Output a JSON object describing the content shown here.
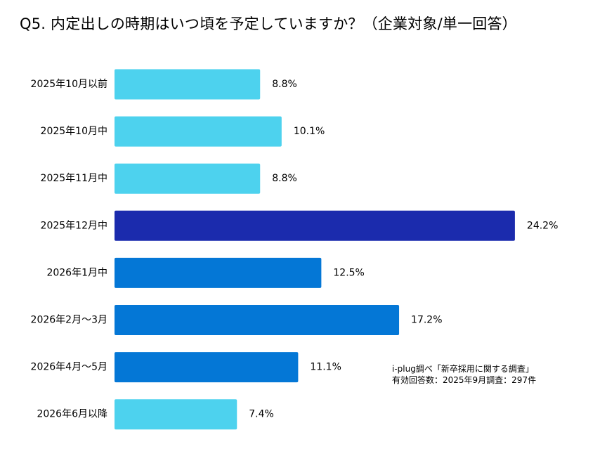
{
  "chart_data": {
    "type": "bar",
    "orientation": "horizontal",
    "title": "Q5. 内定出しの時期はいつ頃を予定していますか？（企業対象/単一回答）",
    "categories": [
      "2025年10月以前",
      "2025年10月中",
      "2025年11月中",
      "2025年12月中",
      "2026年1月中",
      "2026年2月〜3月",
      "2026年4月〜5月",
      "2026年6月以降"
    ],
    "values": [
      8.8,
      10.1,
      8.8,
      24.2,
      12.5,
      17.2,
      11.1,
      7.4
    ],
    "value_labels": [
      "8.8%",
      "10.1%",
      "8.8%",
      "24.2%",
      "12.5%",
      "17.2%",
      "11.1%",
      "7.4%"
    ],
    "bar_colors": [
      "#4dd2ee",
      "#4dd2ee",
      "#4dd2ee",
      "#1b2bad",
      "#0477d6",
      "#0477d6",
      "#0477d6",
      "#4dd2ee"
    ],
    "xlim": [
      0,
      25
    ],
    "grid": false,
    "xlabel": "",
    "ylabel": ""
  },
  "note": {
    "line1": "i-plug調べ「新卒採用に関する調査」",
    "line2": "有効回答数：2025年9月調査：297件"
  }
}
